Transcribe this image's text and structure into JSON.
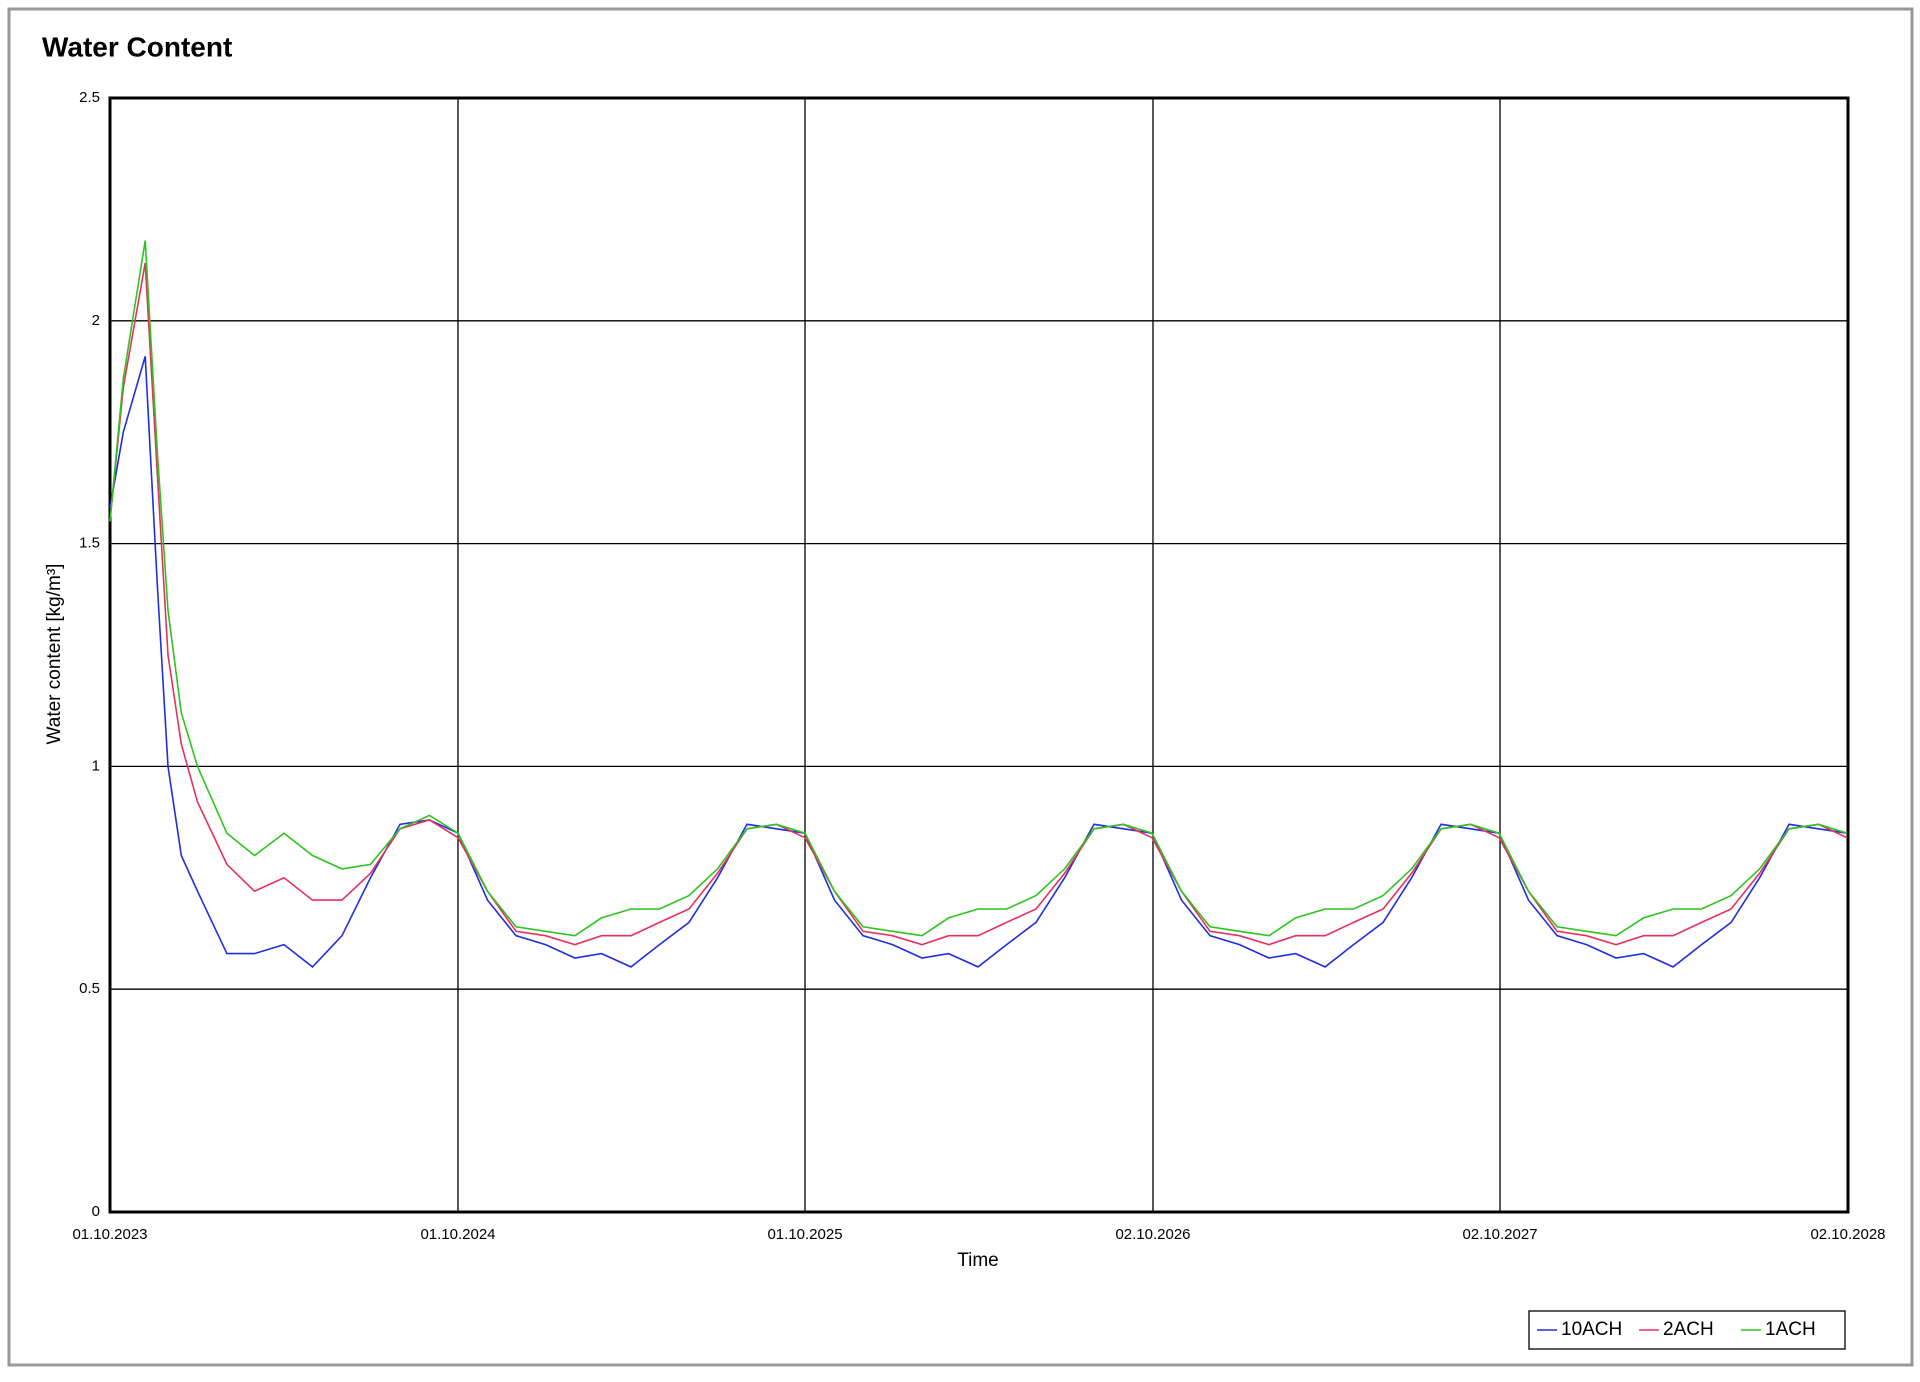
{
  "chart_data": {
    "type": "line",
    "title": "Water Content",
    "x_label": "Time",
    "y_label": "Water content [kg/m³]",
    "x": [
      "2023-10-01",
      "2023-10-15",
      "2023-11-07",
      "2023-11-20",
      "2023-12-01",
      "2023-12-15",
      "2024-01-01",
      "2024-02-01",
      "2024-03-01",
      "2024-04-01",
      "2024-05-01",
      "2024-06-01",
      "2024-07-01",
      "2024-08-01",
      "2024-09-01",
      "2024-10-01",
      "2024-11-01",
      "2024-12-01",
      "2025-01-01",
      "2025-02-01",
      "2025-03-01",
      "2025-04-01",
      "2025-05-01",
      "2025-06-01",
      "2025-07-01",
      "2025-08-01",
      "2025-09-01",
      "2025-10-01",
      "2025-11-01",
      "2025-12-01",
      "2026-01-01",
      "2026-02-01",
      "2026-03-01",
      "2026-04-01",
      "2026-05-01",
      "2026-06-01",
      "2026-07-01",
      "2026-08-01",
      "2026-09-01",
      "2026-10-01",
      "2026-11-01",
      "2026-12-01",
      "2027-01-01",
      "2027-02-01",
      "2027-03-01",
      "2027-04-01",
      "2027-05-01",
      "2027-06-01",
      "2027-07-01",
      "2027-08-01",
      "2027-09-01",
      "2027-10-01",
      "2027-11-01",
      "2027-12-01",
      "2028-01-01",
      "2028-02-01",
      "2028-03-01",
      "2028-04-01",
      "2028-05-01",
      "2028-06-01",
      "2028-07-01",
      "2028-08-01",
      "2028-09-01",
      "2028-10-01"
    ],
    "series": [
      {
        "name": "10ACH",
        "color": "#1f2fe0",
        "values": [
          1.58,
          1.75,
          1.92,
          1.4,
          1.0,
          0.8,
          0.72,
          0.58,
          0.58,
          0.6,
          0.55,
          0.62,
          0.75,
          0.87,
          0.88,
          0.85,
          0.7,
          0.62,
          0.6,
          0.57,
          0.58,
          0.55,
          0.6,
          0.65,
          0.75,
          0.87,
          0.86,
          0.85,
          0.7,
          0.62,
          0.6,
          0.57,
          0.58,
          0.55,
          0.6,
          0.65,
          0.75,
          0.87,
          0.86,
          0.85,
          0.7,
          0.62,
          0.6,
          0.57,
          0.58,
          0.55,
          0.6,
          0.65,
          0.75,
          0.87,
          0.86,
          0.85,
          0.7,
          0.62,
          0.6,
          0.57,
          0.58,
          0.55,
          0.6,
          0.65,
          0.75,
          0.87,
          0.86,
          0.85
        ]
      },
      {
        "name": "2ACH",
        "color": "#e8305e",
        "values": [
          1.55,
          1.85,
          2.13,
          1.65,
          1.25,
          1.05,
          0.92,
          0.78,
          0.72,
          0.75,
          0.7,
          0.7,
          0.76,
          0.86,
          0.88,
          0.84,
          0.72,
          0.63,
          0.62,
          0.6,
          0.62,
          0.62,
          0.65,
          0.68,
          0.76,
          0.86,
          0.87,
          0.84,
          0.72,
          0.63,
          0.62,
          0.6,
          0.62,
          0.62,
          0.65,
          0.68,
          0.76,
          0.86,
          0.87,
          0.84,
          0.72,
          0.63,
          0.62,
          0.6,
          0.62,
          0.62,
          0.65,
          0.68,
          0.76,
          0.86,
          0.87,
          0.84,
          0.72,
          0.63,
          0.62,
          0.6,
          0.62,
          0.62,
          0.65,
          0.68,
          0.76,
          0.86,
          0.87,
          0.84
        ]
      },
      {
        "name": "1ACH",
        "color": "#2ec41f",
        "values": [
          1.55,
          1.87,
          2.18,
          1.7,
          1.35,
          1.12,
          1.0,
          0.85,
          0.8,
          0.85,
          0.8,
          0.77,
          0.78,
          0.86,
          0.89,
          0.85,
          0.72,
          0.64,
          0.63,
          0.62,
          0.66,
          0.68,
          0.68,
          0.71,
          0.77,
          0.86,
          0.87,
          0.85,
          0.72,
          0.64,
          0.63,
          0.62,
          0.66,
          0.68,
          0.68,
          0.71,
          0.77,
          0.86,
          0.87,
          0.85,
          0.72,
          0.64,
          0.63,
          0.62,
          0.66,
          0.68,
          0.68,
          0.71,
          0.77,
          0.86,
          0.87,
          0.85,
          0.72,
          0.64,
          0.63,
          0.62,
          0.66,
          0.68,
          0.68,
          0.71,
          0.77,
          0.86,
          0.87,
          0.85
        ]
      }
    ],
    "xlim": [
      "2023-10-01",
      "2028-10-02"
    ],
    "xticks": [
      {
        "value": "2023-10-01",
        "label": "01.10.2023"
      },
      {
        "value": "2024-10-01",
        "label": "01.10.2024"
      },
      {
        "value": "2025-10-01",
        "label": "01.10.2025"
      },
      {
        "value": "2026-10-02",
        "label": "02.10.2026"
      },
      {
        "value": "2027-10-02",
        "label": "02.10.2027"
      },
      {
        "value": "2028-10-02",
        "label": "02.10.2028"
      }
    ],
    "ylim": [
      0,
      2.5
    ],
    "yticks": [
      0,
      0.5,
      1,
      1.5,
      2,
      2.5
    ],
    "grid": true,
    "legend": "bottom-right"
  }
}
